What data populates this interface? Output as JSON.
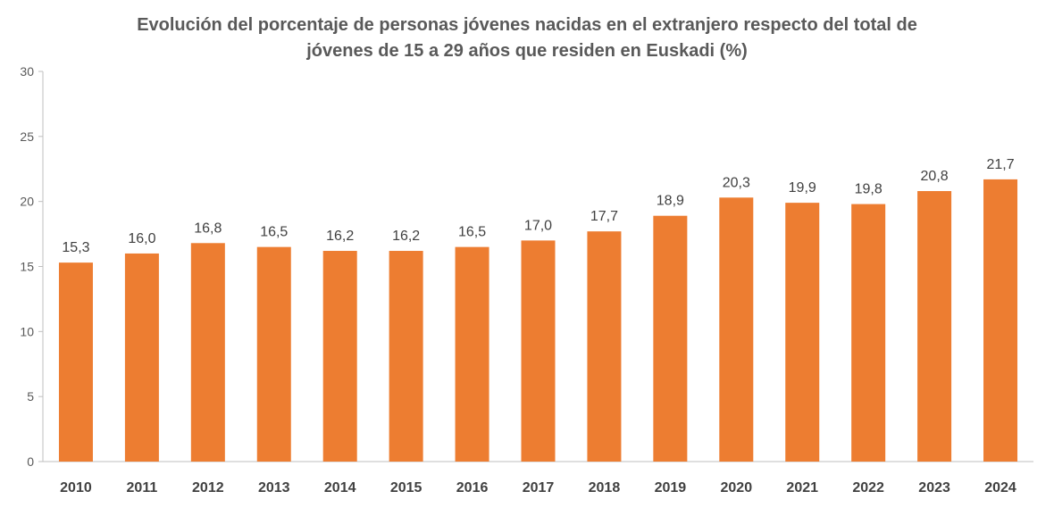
{
  "chart_data": {
    "type": "bar",
    "title_lines": [
      "Evolución del porcentaje de personas jóvenes nacidas en el extranjero respecto del total de",
      "jóvenes de 15 a 29 años que residen en Euskadi (%)"
    ],
    "xlabel": "",
    "ylabel": "",
    "categories": [
      "2010",
      "2011",
      "2012",
      "2013",
      "2014",
      "2015",
      "2016",
      "2017",
      "2018",
      "2019",
      "2020",
      "2021",
      "2022",
      "2023",
      "2024"
    ],
    "values": [
      15.3,
      16.0,
      16.8,
      16.5,
      16.2,
      16.2,
      16.5,
      17.0,
      17.7,
      18.9,
      20.3,
      19.9,
      19.8,
      20.8,
      21.7
    ],
    "data_labels": [
      "15,3",
      "16,0",
      "16,8",
      "16,5",
      "16,2",
      "16,2",
      "16,5",
      "17,0",
      "17,7",
      "18,9",
      "20,3",
      "19,9",
      "19,8",
      "20,8",
      "21,7"
    ],
    "ylim": [
      0,
      30
    ],
    "yticks": [
      0,
      5,
      10,
      15,
      20,
      25,
      30
    ],
    "grid": false,
    "legend": "none",
    "bar_color": "#ED7D31",
    "axis_color": "#BFBFBF"
  }
}
